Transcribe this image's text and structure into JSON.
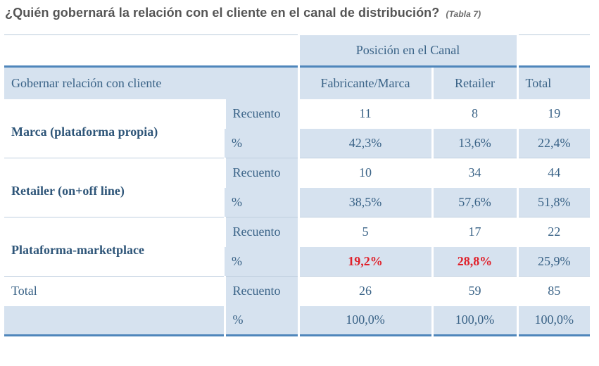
{
  "title": {
    "main": "¿Quién gobernará la relación con el cliente en el canal de distribución?",
    "table_ref": "(Tabla 7)"
  },
  "table": {
    "group_header": "Posición en el Canal",
    "row_variable": "Gobernar relación con cliente",
    "columns": [
      "Fabricante/Marca",
      "Retailer",
      "Total"
    ],
    "rows": [
      {
        "label": "Marca (plataforma propia)",
        "count_label": "Recuento",
        "pct_label": "%",
        "counts": [
          "11",
          "8",
          "19"
        ],
        "pcts": [
          "42,3%",
          "13,6%",
          "22,4%"
        ]
      },
      {
        "label": "Retailer (on+off line)",
        "count_label": "Recuento",
        "pct_label": "%",
        "counts": [
          "10",
          "34",
          "44"
        ],
        "pcts": [
          "38,5%",
          "57,6%",
          "51,8%"
        ]
      },
      {
        "label": "Plataforma-marketplace",
        "count_label": "Recuento",
        "pct_label": "%",
        "counts": [
          "5",
          "17",
          "22"
        ],
        "pcts": [
          "19,2%",
          "28,8%",
          "25,9%"
        ]
      },
      {
        "label": "Total",
        "count_label": "Recuento",
        "pct_label": "%",
        "counts": [
          "26",
          "59",
          "85"
        ],
        "pcts": [
          "100,0%",
          "100,0%",
          "100,0%"
        ]
      }
    ],
    "highlight_color": "#e0202a",
    "accent_color": "#4f86bb",
    "band_color": "#d6e2ef"
  }
}
